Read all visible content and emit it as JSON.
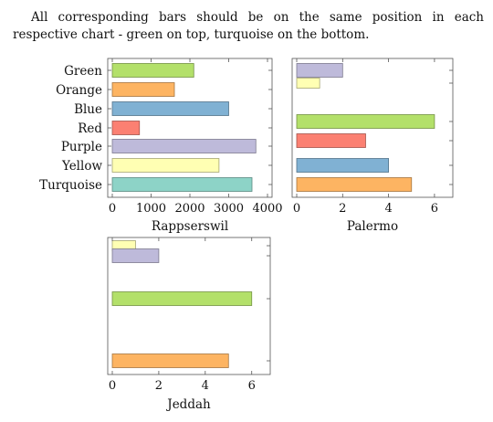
{
  "intro_text": "All corresponding bars should be on the same position in each respective chart - green on top, turquoise on the bottom.",
  "chart_data": [
    {
      "type": "bar",
      "orientation": "horizontal",
      "title": "Rappserswil",
      "categories": [
        "Green",
        "Orange",
        "Blue",
        "Red",
        "Purple",
        "Yellow",
        "Turquoise"
      ],
      "values": [
        2100,
        1600,
        3000,
        700,
        3700,
        2750,
        3600
      ],
      "colors": [
        "#b3e06a",
        "#fdb462",
        "#80b1d3",
        "#fb8072",
        "#bebada",
        "#ffffb3",
        "#8dd3c7"
      ],
      "xlim": [
        0,
        4000
      ],
      "xticks": [
        0,
        1000,
        2000,
        3000,
        4000
      ],
      "show_category_labels": true
    },
    {
      "type": "bar",
      "orientation": "horizontal",
      "title": "Palermo",
      "bars": [
        {
          "color": "#bebada",
          "value": 2
        },
        {
          "color": "#ffffb3",
          "value": 1
        },
        {
          "color": "#b3e06a",
          "value": 6
        },
        {
          "color": "#fb8072",
          "value": 3
        },
        {
          "color": "#80b1d3",
          "value": 4
        },
        {
          "color": "#fdb462",
          "value": 5
        }
      ],
      "xlim": [
        0,
        6.6
      ],
      "xticks": [
        0,
        2,
        4,
        6
      ],
      "show_category_labels": false
    },
    {
      "type": "bar",
      "orientation": "horizontal",
      "title": "Jeddah",
      "bars": [
        {
          "color": "#ffffb3",
          "value": 1
        },
        {
          "color": "#bebada",
          "value": 2
        },
        {
          "color": "#b3e06a",
          "value": 6
        },
        {
          "color": "#fdb462",
          "value": 5
        }
      ],
      "xlim": [
        0,
        6.6
      ],
      "xticks": [
        0,
        2,
        4,
        6
      ],
      "show_category_labels": false
    }
  ]
}
